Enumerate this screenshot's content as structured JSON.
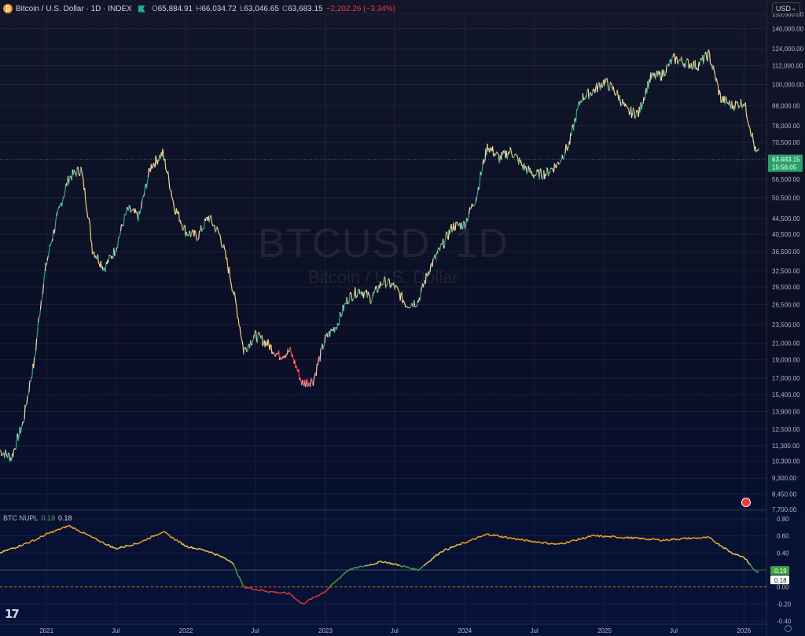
{
  "header": {
    "symbol": "Bitcoin / U.S. Dollar · 1D · INDEX",
    "logo": "₿",
    "o_key": "O",
    "o_val": "65,884.91",
    "h_key": "H",
    "h_val": "66,034.72",
    "l_key": "L",
    "l_val": "63,046.65",
    "c_key": "C",
    "c_val": "63,683.15",
    "change": "−2,202.26 (−3.34%)"
  },
  "currency": {
    "label": "USD",
    "icon": "chevron-down-icon"
  },
  "watermark": {
    "symbol": "BTCUSD, 1D",
    "name": "Bitcoin / U.S. Dollar"
  },
  "indicator": {
    "name": "BTC NUPL",
    "value1": "0.19",
    "value2": "0.18"
  },
  "price_badge": {
    "price": "63,683.15",
    "countdown": "15:56:05"
  },
  "nupl_badges": {
    "green": "0.19",
    "white": "0.18"
  },
  "colors": {
    "up": "#22ab94",
    "down": "#f23645",
    "badge": "#26a269",
    "nupl_green": "#43a047",
    "nupl_orange": "#f5a623",
    "nupl_red": "#e53935"
  },
  "tv_logo": "17",
  "chart_data": [
    {
      "type": "line",
      "title": "BTCUSD, 1D",
      "y_scale": "log",
      "ylim": [
        7700,
        150000
      ],
      "y_ticks": [
        {
          "label": "153,000.00",
          "v": 153000
        },
        {
          "label": "140,000.00",
          "v": 140000
        },
        {
          "label": "124,000.00",
          "v": 124000
        },
        {
          "label": "112,000.00",
          "v": 112000
        },
        {
          "label": "100,000.00",
          "v": 100000
        },
        {
          "label": "88,000.00",
          "v": 88000
        },
        {
          "label": "78,000.00",
          "v": 78000
        },
        {
          "label": "70,500.00",
          "v": 70500
        },
        {
          "label": "56,500.00",
          "v": 56500
        },
        {
          "label": "50,500.00",
          "v": 50500
        },
        {
          "label": "44,500.00",
          "v": 44500
        },
        {
          "label": "40,500.00",
          "v": 40500
        },
        {
          "label": "36,500.00",
          "v": 36500
        },
        {
          "label": "32,500.00",
          "v": 32500
        },
        {
          "label": "29,500.00",
          "v": 29500
        },
        {
          "label": "26,500.00",
          "v": 26500
        },
        {
          "label": "23,500.00",
          "v": 23500
        },
        {
          "label": "21,000.00",
          "v": 21000
        },
        {
          "label": "19,000.00",
          "v": 19000
        },
        {
          "label": "17,000.00",
          "v": 17000
        },
        {
          "label": "15,400.00",
          "v": 15400
        },
        {
          "label": "13,900.00",
          "v": 13900
        },
        {
          "label": "12,500.00",
          "v": 12500
        },
        {
          "label": "11,300.00",
          "v": 11300
        },
        {
          "label": "10,300.00",
          "v": 10300
        },
        {
          "label": "9,300.00",
          "v": 9300
        },
        {
          "label": "8,450.00",
          "v": 8450
        },
        {
          "label": "7,700.00",
          "v": 7700
        }
      ],
      "x_ticks": [
        "2021",
        "Jul",
        "2022",
        "Jul",
        "2023",
        "Jul",
        "2024",
        "Jul",
        "2025",
        "Jul",
        "2026"
      ],
      "last_price": 63683.15,
      "x": [
        "2020-09",
        "2020-10",
        "2020-11",
        "2020-12",
        "2021-01",
        "2021-02",
        "2021-03",
        "2021-04",
        "2021-05",
        "2021-06",
        "2021-07",
        "2021-08",
        "2021-09",
        "2021-10",
        "2021-11",
        "2021-12",
        "2022-01",
        "2022-02",
        "2022-03",
        "2022-04",
        "2022-05",
        "2022-06",
        "2022-07",
        "2022-08",
        "2022-09",
        "2022-10",
        "2022-11",
        "2022-12",
        "2023-01",
        "2023-02",
        "2023-03",
        "2023-04",
        "2023-05",
        "2023-06",
        "2023-07",
        "2023-08",
        "2023-09",
        "2023-10",
        "2023-11",
        "2023-12",
        "2024-01",
        "2024-02",
        "2024-03",
        "2024-04",
        "2024-05",
        "2024-06",
        "2024-07",
        "2024-08",
        "2024-09",
        "2024-10",
        "2024-11",
        "2024-12",
        "2025-01",
        "2025-02",
        "2025-03",
        "2025-04",
        "2025-05",
        "2025-06",
        "2025-07",
        "2025-08",
        "2025-09",
        "2025-10",
        "2025-11",
        "2025-12",
        "2026-01",
        "2026-02"
      ],
      "values": [
        11000,
        10500,
        13000,
        19000,
        34000,
        46000,
        57000,
        60000,
        37000,
        33000,
        37000,
        47000,
        45000,
        61000,
        66000,
        48000,
        41000,
        40000,
        45000,
        40000,
        30000,
        20000,
        22000,
        21000,
        19500,
        20000,
        16500,
        16800,
        21500,
        23500,
        27500,
        29000,
        27500,
        30500,
        29500,
        26500,
        27000,
        33000,
        37500,
        42500,
        43000,
        51000,
        69000,
        64000,
        67000,
        61000,
        58000,
        58500,
        62000,
        70000,
        92000,
        96000,
        102000,
        95000,
        85000,
        84000,
        104000,
        106000,
        117000,
        114000,
        112000,
        120000,
        92000,
        88000,
        90000,
        66000
      ]
    },
    {
      "type": "line",
      "title": "BTC NUPL",
      "ylim": [
        -0.4,
        0.8
      ],
      "y_ticks": [
        "0.80",
        "0.60",
        "0.40",
        "0.20",
        "0.00",
        "-0.20",
        "-0.40"
      ],
      "x": [
        "2020-09",
        "2020-12",
        "2021-01",
        "2021-03",
        "2021-05",
        "2021-07",
        "2021-09",
        "2021-11",
        "2022-01",
        "2022-03",
        "2022-05",
        "2022-06",
        "2022-08",
        "2022-10",
        "2022-11",
        "2023-01",
        "2023-03",
        "2023-06",
        "2023-09",
        "2023-11",
        "2024-01",
        "2024-03",
        "2024-06",
        "2024-09",
        "2024-12",
        "2025-03",
        "2025-06",
        "2025-08",
        "2025-10",
        "2025-12",
        "2026-01",
        "2026-02"
      ],
      "values": [
        0.4,
        0.55,
        0.62,
        0.72,
        0.58,
        0.45,
        0.52,
        0.65,
        0.48,
        0.42,
        0.3,
        0.0,
        -0.05,
        -0.08,
        -0.2,
        -0.05,
        0.2,
        0.3,
        0.2,
        0.42,
        0.52,
        0.62,
        0.55,
        0.5,
        0.6,
        0.58,
        0.55,
        0.57,
        0.58,
        0.4,
        0.35,
        0.18
      ]
    }
  ]
}
